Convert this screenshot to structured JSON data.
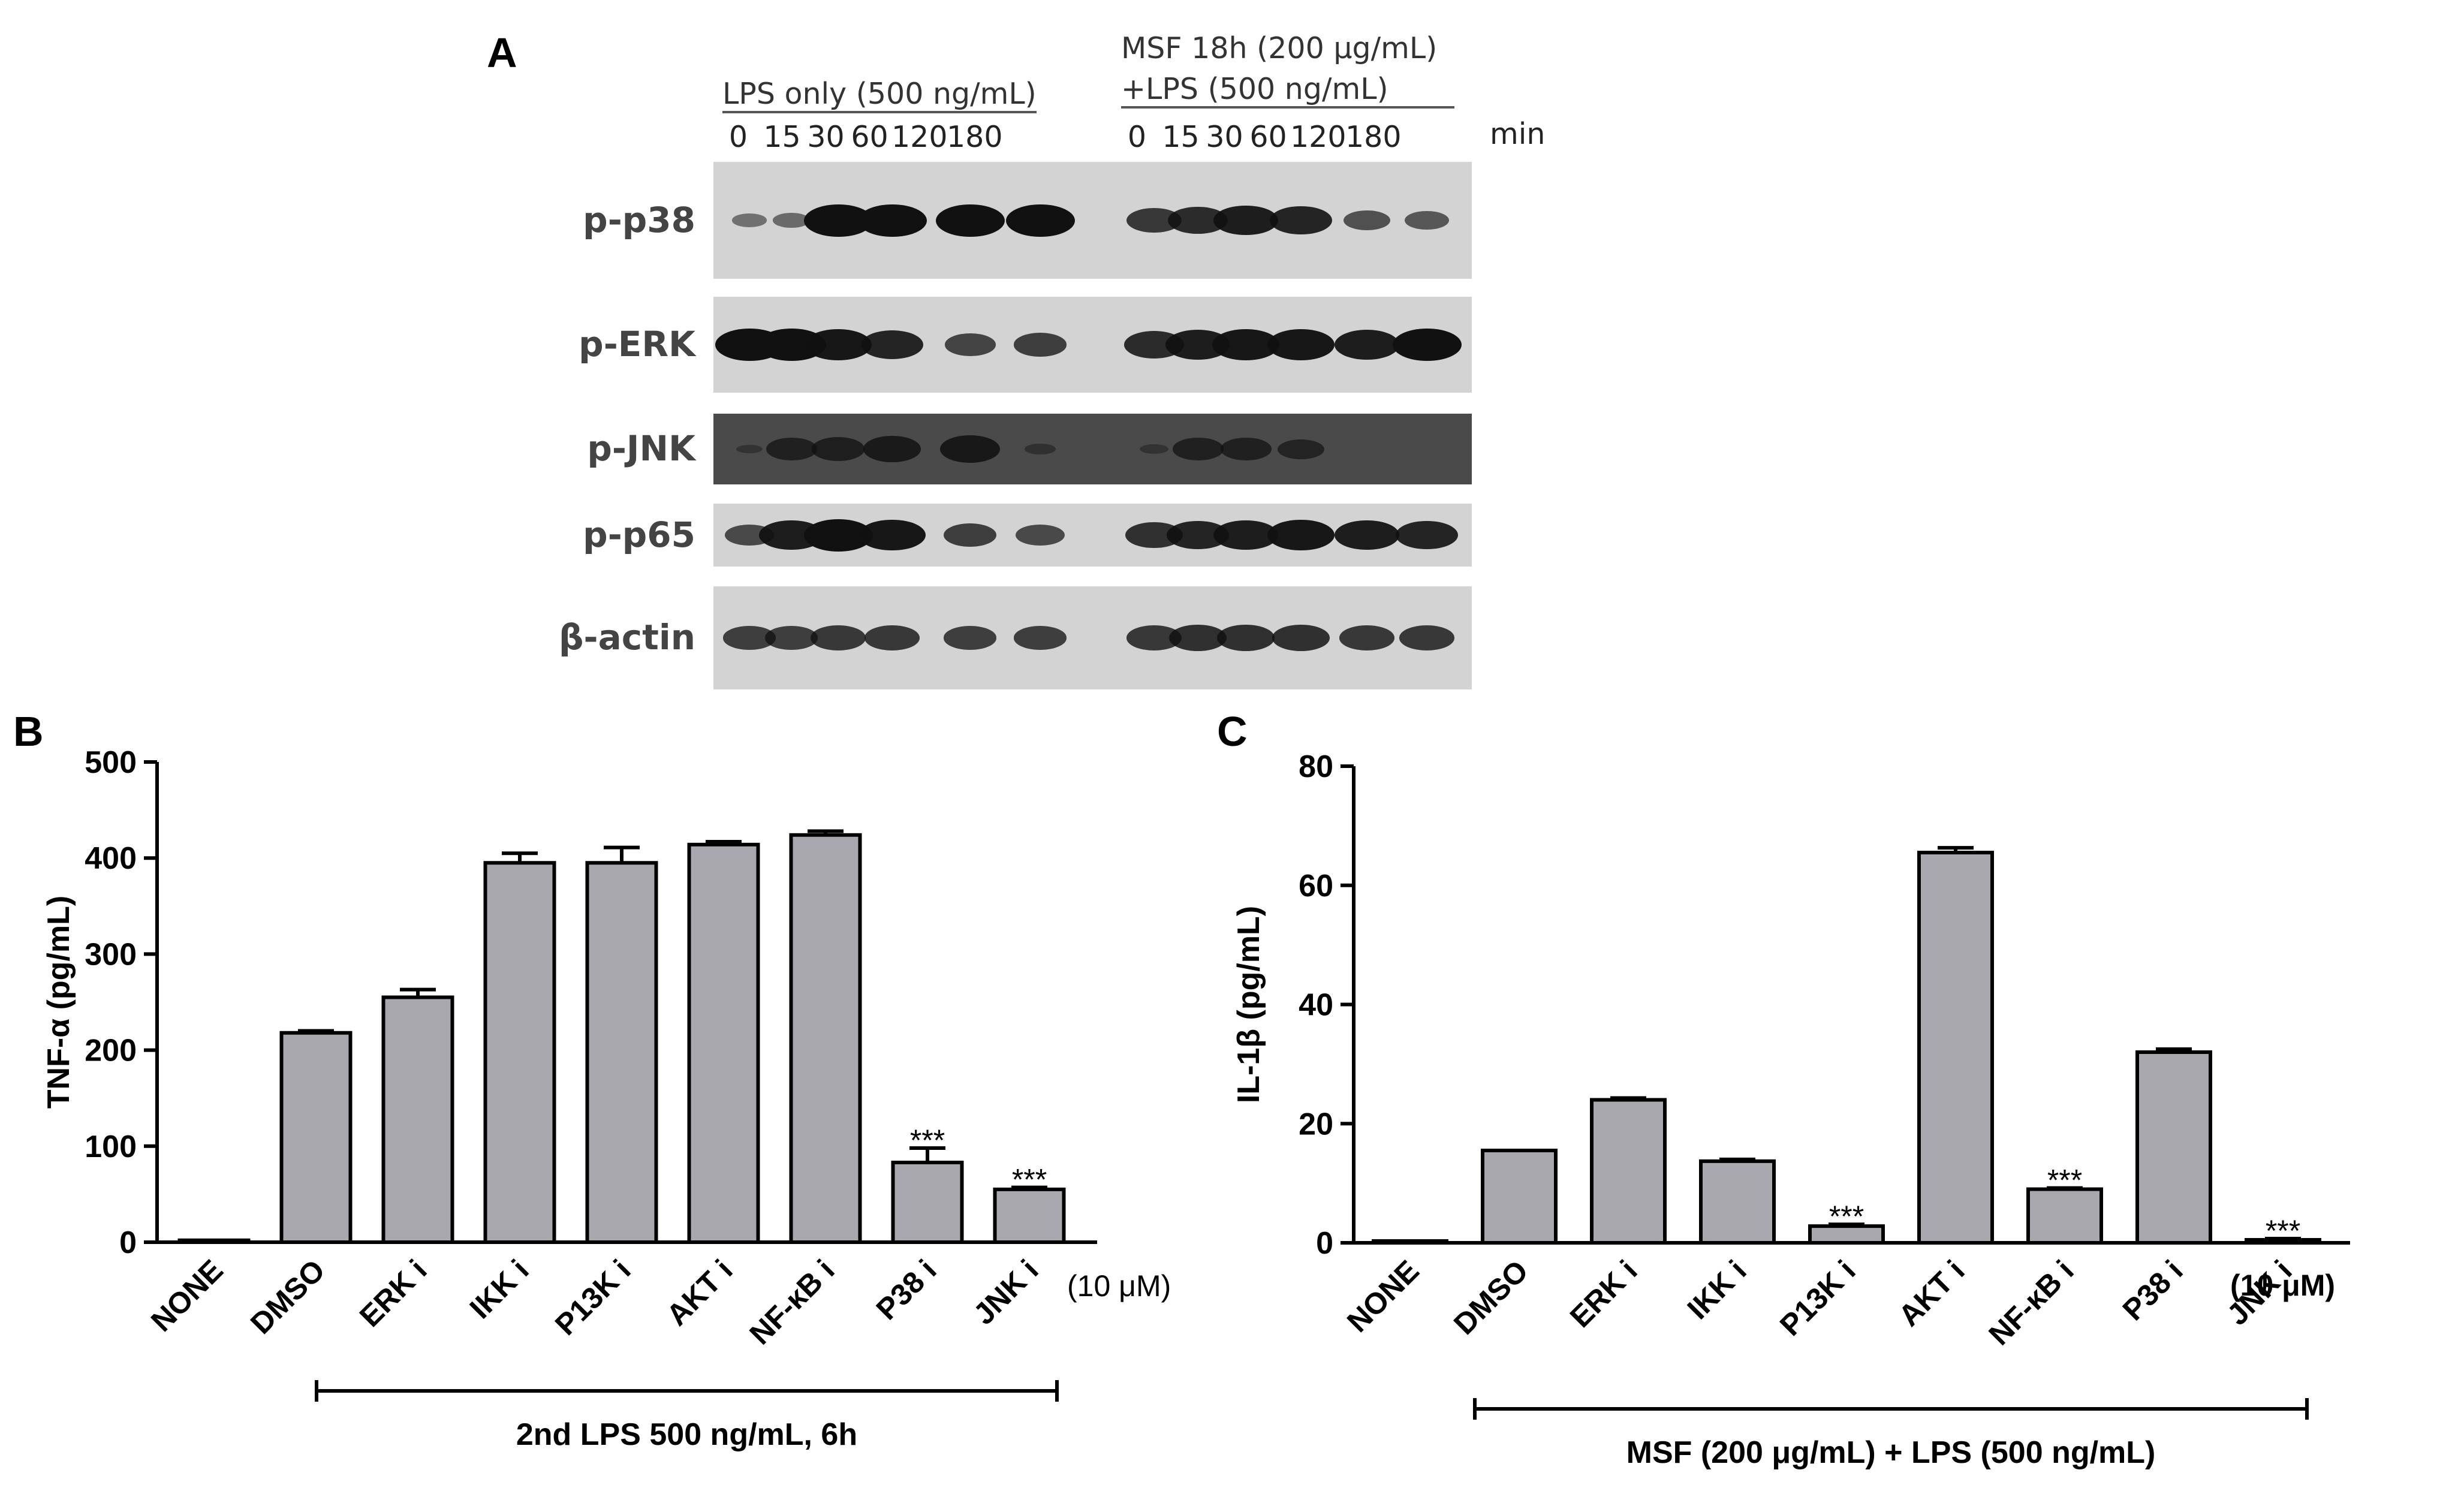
{
  "panels": {
    "a": "A",
    "b": "B",
    "c": "C"
  },
  "blot": {
    "group1_header": "LPS only (500 ng/mL)",
    "group2_header_line1": "MSF 18h (200 μg/mL)",
    "group2_header_line2": "+LPS (500 ng/mL)",
    "time_points": [
      "0",
      "15",
      "30",
      "60",
      "120",
      "180"
    ],
    "time_unit": "min",
    "rows": [
      {
        "label": "p-p38",
        "dark": false,
        "group1": [
          0.25,
          0.3,
          1.0,
          1.0,
          1.0,
          1.0
        ],
        "group2": [
          0.7,
          0.8,
          0.9,
          0.85,
          0.5,
          0.45
        ]
      },
      {
        "label": "p-ERK",
        "dark": false,
        "group1": [
          1.0,
          1.0,
          0.95,
          0.85,
          0.6,
          0.65
        ],
        "group2": [
          0.8,
          0.9,
          0.95,
          0.95,
          0.9,
          1.0
        ]
      },
      {
        "label": "p-JNK",
        "dark": true,
        "group1": [
          0.05,
          0.6,
          0.65,
          0.75,
          0.8,
          0.15
        ],
        "group2": [
          0.1,
          0.6,
          0.6,
          0.5,
          0.0,
          0.0
        ]
      },
      {
        "label": "p-p65",
        "dark": false,
        "group1": [
          0.55,
          0.9,
          1.0,
          0.95,
          0.65,
          0.55
        ],
        "group2": [
          0.75,
          0.85,
          0.9,
          0.95,
          0.9,
          0.85
        ]
      },
      {
        "label": "β-actin",
        "dark": false,
        "group1": [
          0.65,
          0.65,
          0.7,
          0.7,
          0.65,
          0.65
        ],
        "group2": [
          0.7,
          0.75,
          0.75,
          0.75,
          0.7,
          0.7
        ]
      }
    ]
  },
  "chart_data": [
    {
      "type": "bar",
      "ylabel": "TNF-α (pg/mL)",
      "ylim": [
        0,
        500
      ],
      "yticks": [
        "0",
        "100",
        "200",
        "300",
        "400",
        "500"
      ],
      "categories": [
        "NONE",
        "DMSO",
        "ERK i",
        "IKK i",
        "P13K i",
        "AKT i",
        "NF-κB i",
        "P38 i",
        "JNK i"
      ],
      "values": [
        2,
        218,
        255,
        395,
        395,
        414,
        424,
        83,
        55
      ],
      "errors": [
        0,
        2,
        8,
        10,
        16,
        3,
        4,
        15,
        2
      ],
      "significance": [
        "",
        "",
        "",
        "",
        "",
        "",
        "",
        "***",
        "***"
      ],
      "concentration": "(10 μM)",
      "bracket_label": "2nd LPS 500 ng/mL, 6h",
      "bar_color": "#a8a8ae"
    },
    {
      "type": "bar",
      "ylabel": "IL-1β (pg/mL)",
      "ylim": [
        0,
        80
      ],
      "yticks": [
        "0",
        "20",
        "40",
        "60",
        "80"
      ],
      "categories": [
        "NONE",
        "DMSO",
        "ERK i",
        "IKK i",
        "P13K i",
        "AKT i",
        "NF-κB i",
        "P38 i",
        "JNK i"
      ],
      "values": [
        0,
        15.5,
        24,
        13.7,
        2.8,
        65.5,
        9,
        32,
        0.5
      ],
      "errors": [
        0,
        0,
        0.3,
        0.3,
        0.3,
        0.8,
        0.2,
        0.5,
        0.2
      ],
      "significance": [
        "",
        "",
        "",
        "",
        "***",
        "",
        "***",
        "",
        "***"
      ],
      "concentration": "(10 μM)",
      "bracket_label": "MSF (200 μg/mL) + LPS (500 ng/mL)",
      "bar_color": "#a8a8ae"
    }
  ]
}
